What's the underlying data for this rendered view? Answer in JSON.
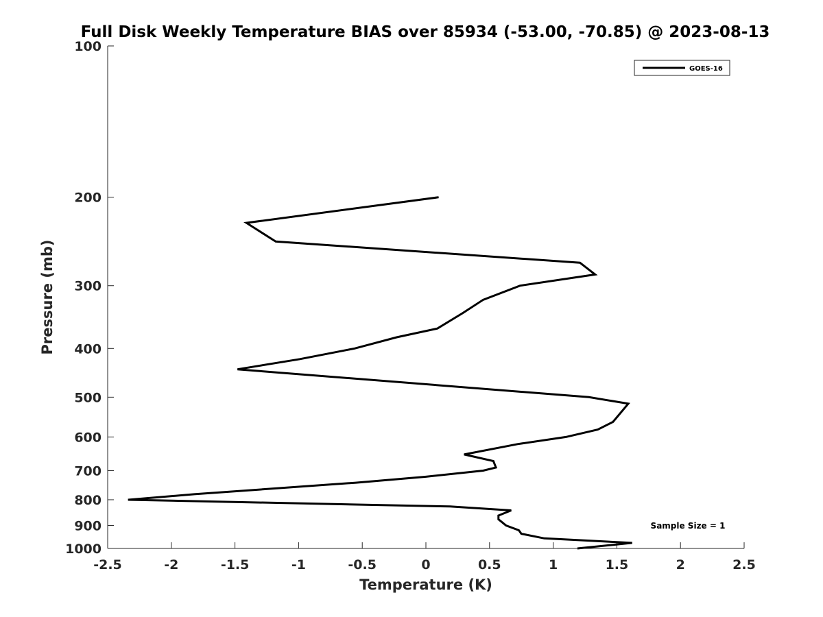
{
  "chart_data": {
    "type": "line",
    "title": "Full Disk Weekly Temperature BIAS over 85934 (-53.00, -70.85) @ 2023-08-13",
    "xlabel": "Temperature (K)",
    "ylabel": "Pressure (mb)",
    "xlim": [
      -2.5,
      2.5
    ],
    "ylim": [
      100,
      1000
    ],
    "y_scale": "log",
    "y_reversed": true,
    "grid": false,
    "legend_position": "top-right",
    "x_ticks": [
      -2.5,
      -2,
      -1.5,
      -1,
      -0.5,
      0,
      0.5,
      1,
      1.5,
      2,
      2.5
    ],
    "x_tick_labels": [
      "-2.5",
      "-2",
      "-1.5",
      "-1",
      "-0.5",
      "0",
      "0.5",
      "1",
      "1.5",
      "2",
      "2.5"
    ],
    "y_ticks": [
      100,
      200,
      300,
      400,
      500,
      600,
      700,
      800,
      900,
      1000
    ],
    "y_tick_labels": [
      "100",
      "200",
      "300",
      "400",
      "500",
      "600",
      "700",
      "800",
      "900",
      "1000"
    ],
    "series": [
      {
        "name": "GOES-16",
        "color": "#000000",
        "points": [
          {
            "x": 0.1,
            "p": 200
          },
          {
            "x": -1.41,
            "p": 225
          },
          {
            "x": -1.18,
            "p": 245
          },
          {
            "x": 1.21,
            "p": 270
          },
          {
            "x": 1.33,
            "p": 285
          },
          {
            "x": 0.74,
            "p": 300
          },
          {
            "x": 0.45,
            "p": 320
          },
          {
            "x": 0.29,
            "p": 340
          },
          {
            "x": 0.09,
            "p": 365
          },
          {
            "x": -0.23,
            "p": 380
          },
          {
            "x": -0.56,
            "p": 400
          },
          {
            "x": -0.99,
            "p": 420
          },
          {
            "x": -1.48,
            "p": 440
          },
          {
            "x": 1.28,
            "p": 500
          },
          {
            "x": 1.59,
            "p": 515
          },
          {
            "x": 1.47,
            "p": 560
          },
          {
            "x": 1.35,
            "p": 580
          },
          {
            "x": 1.1,
            "p": 600
          },
          {
            "x": 0.72,
            "p": 620
          },
          {
            "x": 0.3,
            "p": 650
          },
          {
            "x": 0.53,
            "p": 670
          },
          {
            "x": 0.55,
            "p": 690
          },
          {
            "x": 0.45,
            "p": 700
          },
          {
            "x": 0.0,
            "p": 720
          },
          {
            "x": -0.55,
            "p": 740
          },
          {
            "x": -1.82,
            "p": 780
          },
          {
            "x": -2.34,
            "p": 800
          },
          {
            "x": 0.19,
            "p": 825
          },
          {
            "x": 0.67,
            "p": 840
          },
          {
            "x": 0.57,
            "p": 860
          },
          {
            "x": 0.57,
            "p": 875
          },
          {
            "x": 0.63,
            "p": 900
          },
          {
            "x": 0.73,
            "p": 920
          },
          {
            "x": 0.75,
            "p": 935
          },
          {
            "x": 0.93,
            "p": 955
          },
          {
            "x": 1.62,
            "p": 975
          },
          {
            "x": 1.19,
            "p": 1000
          }
        ]
      }
    ],
    "annotations": [
      {
        "text": "Sample Size = 1",
        "position": "bottom-right"
      }
    ]
  }
}
